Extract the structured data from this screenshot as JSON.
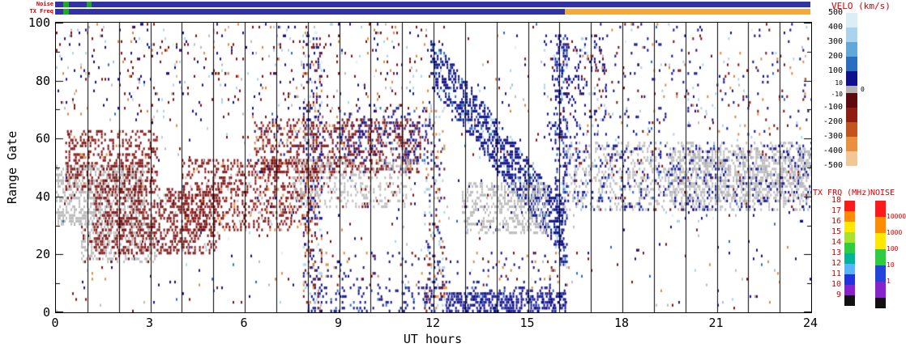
{
  "strips_header": {
    "noise_label": "Noise",
    "txfreq_label": "TX Freq"
  },
  "chart_data": {
    "type": "scatter",
    "description": "SuperDARN-style range-time plot of Doppler velocity: scattered colored cells (blue = positive velocity toward radar, red/orange = negative, gray = ground scatter) over 24 hours UT versus range gate, with vertical gridlines every hour.",
    "xlabel": "UT hours",
    "ylabel": "Range Gate",
    "xlim": [
      0,
      24
    ],
    "ylim": [
      0,
      100
    ],
    "xticks": [
      0,
      3,
      6,
      9,
      12,
      15,
      18,
      21,
      24
    ],
    "yticks": [
      0,
      20,
      40,
      60,
      80,
      100
    ],
    "hour_gridlines": true,
    "strips": {
      "noise": [
        {
          "from": 0,
          "to": 0.25,
          "color": "#3232a8"
        },
        {
          "from": 0.25,
          "to": 0.45,
          "color": "#1faa1f"
        },
        {
          "from": 0.45,
          "to": 1.0,
          "color": "#3232a8"
        },
        {
          "from": 1.0,
          "to": 1.15,
          "color": "#1faa1f"
        },
        {
          "from": 1.15,
          "to": 24,
          "color": "#3232a8"
        }
      ],
      "txfreq": [
        {
          "from": 0,
          "to": 0.25,
          "color": "#3232a8"
        },
        {
          "from": 0.25,
          "to": 0.45,
          "color": "#1faa1f"
        },
        {
          "from": 0.45,
          "to": 16.2,
          "color": "#3232a8"
        },
        {
          "from": 16.2,
          "to": 24,
          "color": "#f5a93a"
        }
      ]
    },
    "palette": {
      "gray": "#bdbdbd",
      "darkred": "#7a1010",
      "red": "#a32020",
      "orange": "#e08a3c",
      "lightorange": "#f2c795",
      "navy": "#10108c",
      "blue": "#2a6ebf",
      "lightblue": "#a9d4ec",
      "cyan": "#dbeef8"
    },
    "features": [
      {
        "name": "background-noise",
        "h": [
          0,
          24
        ],
        "g": [
          0,
          100
        ],
        "d": 0.014,
        "colors": {
          "navy": 0.3,
          "darkred": 0.22,
          "orange": 0.1,
          "lightblue": 0.12,
          "cyan": 0.06,
          "gray": 0.12,
          "blue": 0.08
        }
      },
      {
        "name": "ground-scatter-left",
        "h": [
          0,
          2.8
        ],
        "g": [
          30,
          50
        ],
        "d": 0.5,
        "colors": {
          "gray": 0.95,
          "darkred": 0.05
        }
      },
      {
        "name": "ground-scatter-left-low",
        "h": [
          0.8,
          3.2
        ],
        "g": [
          17,
          30
        ],
        "d": 0.35,
        "colors": {
          "gray": 0.9,
          "darkred": 0.1
        }
      },
      {
        "name": "red-streak-upper-left",
        "h": [
          0.3,
          3.2
        ],
        "g": [
          42,
          62
        ],
        "d": 0.3,
        "colors": {
          "darkred": 0.85,
          "red": 0.1,
          "orange": 0.05
        }
      },
      {
        "name": "red-streak-lower-left",
        "h": [
          1.2,
          5.2
        ],
        "g": [
          20,
          42
        ],
        "d": 0.38,
        "colors": {
          "darkred": 0.85,
          "red": 0.1,
          "gray": 0.05
        }
      },
      {
        "name": "red-band-mid",
        "h": [
          4.0,
          8.3
        ],
        "g": [
          28,
          52
        ],
        "d": 0.3,
        "colors": {
          "darkred": 0.75,
          "red": 0.1,
          "gray": 0.1,
          "orange": 0.05
        }
      },
      {
        "name": "red-band-upper",
        "h": [
          6.3,
          11.6
        ],
        "g": [
          48,
          66
        ],
        "d": 0.35,
        "colors": {
          "darkred": 0.7,
          "red": 0.1,
          "navy": 0.1,
          "orange": 0.05,
          "gray": 0.05
        }
      },
      {
        "name": "ground-scatter-mid",
        "h": [
          7.5,
          11.3
        ],
        "g": [
          36,
          52
        ],
        "d": 0.25,
        "colors": {
          "gray": 0.9,
          "darkred": 0.1
        }
      },
      {
        "name": "navy-cluster-10-12",
        "h": [
          9.0,
          11.8
        ],
        "g": [
          52,
          70
        ],
        "d": 0.15,
        "colors": {
          "navy": 0.7,
          "blue": 0.15,
          "darkred": 0.15
        }
      },
      {
        "name": "blue-descending-band",
        "slope": true,
        "h": [
          11.9,
          16.1
        ],
        "gc": [
          86,
          28
        ],
        "hw": 9,
        "d": 0.5,
        "colors": {
          "navy": 0.8,
          "blue": 0.12,
          "lightblue": 0.08
        }
      },
      {
        "name": "ground-scatter-13-15",
        "h": [
          12.9,
          15.6
        ],
        "g": [
          27,
          44
        ],
        "d": 0.4,
        "colors": {
          "gray": 0.95,
          "navy": 0.05
        }
      },
      {
        "name": "navy-bottom",
        "h": [
          8.0,
          16.2
        ],
        "g": [
          0,
          8
        ],
        "d": 0.15,
        "colors": {
          "navy": 0.9,
          "blue": 0.1
        }
      },
      {
        "name": "navy-bottom-dense",
        "h": [
          12.4,
          16.2
        ],
        "g": [
          0,
          6
        ],
        "d": 0.45,
        "colors": {
          "navy": 0.95,
          "blue": 0.05
        }
      },
      {
        "name": "right-mixed-band",
        "h": [
          16.1,
          24
        ],
        "g": [
          35,
          58
        ],
        "d": 0.3,
        "colors": {
          "gray": 0.6,
          "navy": 0.3,
          "blue": 0.05,
          "darkred": 0.05
        }
      },
      {
        "name": "right-upper-specks",
        "h": [
          16,
          24
        ],
        "g": [
          60,
          100
        ],
        "d": 0.04,
        "colors": {
          "navy": 0.5,
          "darkred": 0.2,
          "lightblue": 0.15,
          "orange": 0.15
        }
      },
      {
        "name": "left-upper-specks",
        "h": [
          0,
          12
        ],
        "g": [
          66,
          100
        ],
        "d": 0.05,
        "colors": {
          "darkred": 0.4,
          "navy": 0.25,
          "lightblue": 0.15,
          "orange": 0.1,
          "gray": 0.1
        }
      },
      {
        "name": "mixed-column-8h",
        "h": [
          7.85,
          8.45
        ],
        "g": [
          0,
          96
        ],
        "d": 0.28,
        "colors": {
          "navy": 0.35,
          "darkred": 0.3,
          "orange": 0.12,
          "lightblue": 0.13,
          "cyan": 0.1
        }
      },
      {
        "name": "mixed-column-12h",
        "h": [
          11.7,
          12.35
        ],
        "g": [
          0,
          70
        ],
        "d": 0.18,
        "colors": {
          "lightblue": 0.3,
          "navy": 0.3,
          "orange": 0.15,
          "darkred": 0.25
        }
      },
      {
        "name": "navy-column-16h",
        "h": [
          15.85,
          16.25
        ],
        "g": [
          15,
          95
        ],
        "d": 0.3,
        "colors": {
          "navy": 0.8,
          "blue": 0.1,
          "lightblue": 0.1
        }
      },
      {
        "name": "blue-upper-16-17",
        "h": [
          15.5,
          17.5
        ],
        "g": [
          60,
          95
        ],
        "d": 0.12,
        "colors": {
          "navy": 0.7,
          "lightblue": 0.15,
          "darkred": 0.15
        }
      },
      {
        "name": "ground-scatter-right",
        "h": [
          19.5,
          24
        ],
        "g": [
          38,
          55
        ],
        "d": 0.35,
        "colors": {
          "gray": 0.85,
          "navy": 0.15
        }
      },
      {
        "name": "bottom-sparse-mid",
        "h": [
          8,
          16
        ],
        "g": [
          8,
          20
        ],
        "d": 0.06,
        "colors": {
          "navy": 0.6,
          "darkred": 0.2,
          "orange": 0.2
        }
      }
    ]
  },
  "velocity_colorbar": {
    "title": "VELO (km/s)",
    "upper_labels": [
      "500",
      "400",
      "300",
      "200",
      "100"
    ],
    "upper_colors": [
      "#dbeef8",
      "#a9d4ec",
      "#5fa8d8",
      "#2a6ebf",
      "#10108c"
    ],
    "zero_band": {
      "labels": [
        "10",
        "-10"
      ],
      "zero_label": "0",
      "color": "#b4b4b4"
    },
    "lower_labels": [
      "-100",
      "-200",
      "-300",
      "-400",
      "-500"
    ],
    "lower_colors": [
      "#5c0a0a",
      "#8f1d12",
      "#c2551e",
      "#e89140",
      "#f2c795"
    ]
  },
  "txfrq_colorbar": {
    "title": "TX FRQ (MHz)",
    "labels": [
      "18",
      "17",
      "16",
      "15",
      "14",
      "13",
      "12",
      "11",
      "10",
      "9"
    ],
    "colors": [
      "#ff1a1a",
      "#ff8c00",
      "#ffe800",
      "#a6e22e",
      "#2ecc40",
      "#00b39b",
      "#59b4ff",
      "#2233dd",
      "#8822cc"
    ],
    "bottom_color": "#111111"
  },
  "noise_colorbar": {
    "title": "NOISE",
    "labels": [
      "10000",
      "1000",
      "100",
      "10",
      "1"
    ],
    "colors": [
      "#ff1a1a",
      "#ff8c00",
      "#ffe800",
      "#2ecc40",
      "#2244dd",
      "#8822cc"
    ],
    "bottom_color": "#111111"
  }
}
